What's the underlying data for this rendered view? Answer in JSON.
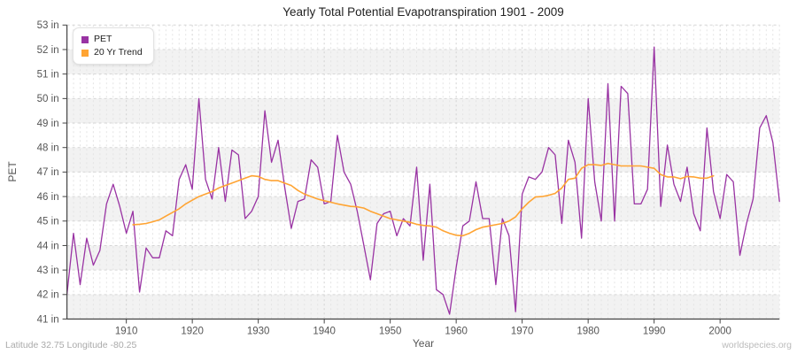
{
  "header": {
    "title": "Yearly Total Potential Evapotranspiration 1901 - 2009"
  },
  "legend": {
    "items": [
      {
        "label": "PET",
        "color": "#9933a3"
      },
      {
        "label": "20 Yr Trend",
        "color": "#ffa433"
      }
    ]
  },
  "axes": {
    "y_label": "PET",
    "x_label": "Year",
    "y_tick_suffix": " in",
    "y_ticks": [
      41,
      42,
      43,
      44,
      45,
      46,
      47,
      48,
      49,
      50,
      51,
      52,
      53
    ],
    "x_ticks": [
      1910,
      1920,
      1930,
      1940,
      1950,
      1960,
      1970,
      1980,
      1990,
      2000
    ]
  },
  "footer": {
    "left": "Latitude 32.75 Longitude -80.25",
    "right": "worldspecies.org"
  },
  "chart_data": {
    "type": "line",
    "title": "Yearly Total Potential Evapotranspiration 1901 - 2009",
    "xlabel": "Year",
    "ylabel": "PET",
    "x_range": [
      1901,
      2009
    ],
    "ylim": [
      41,
      53
    ],
    "grid": true,
    "legend_position": "top-left",
    "band_fill_from": 41,
    "series": [
      {
        "name": "PET",
        "color": "#9933a3",
        "start_year": 1901,
        "values": [
          42.0,
          44.5,
          42.4,
          44.3,
          43.2,
          43.8,
          45.7,
          46.5,
          45.6,
          44.5,
          45.4,
          42.1,
          43.9,
          43.5,
          43.5,
          44.6,
          44.4,
          46.7,
          47.3,
          46.3,
          50.0,
          46.7,
          45.9,
          48.0,
          45.8,
          47.9,
          47.7,
          45.1,
          45.4,
          46.0,
          49.5,
          47.4,
          48.3,
          46.4,
          44.7,
          45.8,
          45.9,
          47.5,
          47.2,
          45.7,
          45.8,
          48.5,
          47.0,
          46.5,
          45.4,
          44.0,
          42.6,
          44.9,
          45.3,
          45.4,
          44.4,
          45.1,
          44.8,
          47.2,
          43.4,
          46.5,
          42.2,
          42.0,
          41.2,
          43.1,
          44.8,
          45.0,
          46.6,
          45.1,
          45.1,
          42.4,
          45.1,
          44.4,
          41.3,
          46.1,
          46.8,
          46.7,
          47.0,
          48.0,
          47.7,
          44.9,
          48.3,
          47.4,
          44.3,
          50.0,
          46.6,
          45.0,
          50.6,
          45.0,
          50.5,
          50.2,
          45.7,
          45.7,
          46.3,
          52.1,
          45.6,
          48.1,
          46.5,
          45.8,
          47.2,
          45.3,
          44.6,
          48.8,
          46.2,
          45.1,
          46.9,
          46.6,
          43.6,
          44.9,
          45.9,
          48.8,
          49.3,
          48.2,
          45.8
        ]
      },
      {
        "name": "20 Yr Trend",
        "color": "#ffa433",
        "start_year": 1911,
        "values": [
          44.85,
          44.87,
          44.9,
          44.97,
          45.05,
          45.2,
          45.35,
          45.5,
          45.7,
          45.85,
          46.0,
          46.1,
          46.2,
          46.35,
          46.45,
          46.55,
          46.65,
          46.75,
          46.85,
          46.82,
          46.7,
          46.65,
          46.65,
          46.55,
          46.45,
          46.25,
          46.1,
          46.0,
          45.9,
          45.83,
          45.77,
          45.7,
          45.65,
          45.6,
          45.58,
          45.53,
          45.4,
          45.3,
          45.2,
          45.1,
          45.05,
          45.0,
          44.95,
          44.87,
          44.82,
          44.8,
          44.75,
          44.6,
          44.5,
          44.42,
          44.4,
          44.5,
          44.65,
          44.75,
          44.8,
          44.85,
          44.9,
          45.0,
          45.17,
          45.5,
          45.77,
          45.98,
          46.0,
          46.05,
          46.13,
          46.35,
          46.7,
          46.75,
          47.15,
          47.3,
          47.3,
          47.27,
          47.35,
          47.3,
          47.25,
          47.25,
          47.25,
          47.25,
          47.2,
          47.15,
          46.9,
          46.8,
          46.8,
          46.73,
          46.82,
          46.8,
          46.75,
          46.75,
          46.85
        ]
      }
    ]
  }
}
